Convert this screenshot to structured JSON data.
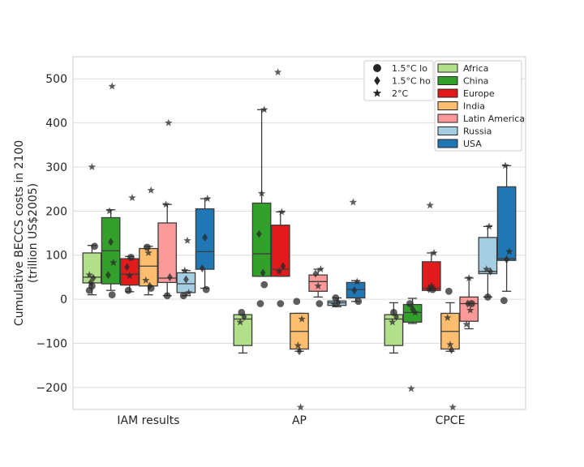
{
  "chart_data": {
    "type": "box",
    "ylabel": "Cumulative BECCS costs in 2100\n(trillion US$2005)",
    "ylim": [
      -250,
      550
    ],
    "yticks": [
      -200,
      -100,
      0,
      100,
      200,
      300,
      400,
      500
    ],
    "categories": [
      "IAM results",
      "AP",
      "CPCE"
    ],
    "grid": true,
    "marker_legend": [
      {
        "label": "1.5°C lo",
        "marker": "circle"
      },
      {
        "label": "1.5°C ho",
        "marker": "diamond"
      },
      {
        "label": "2°C",
        "marker": "star"
      }
    ],
    "series": [
      {
        "name": "Africa",
        "color": "#b2df8a"
      },
      {
        "name": "China",
        "color": "#33a02c"
      },
      {
        "name": "Europe",
        "color": "#e31a1c"
      },
      {
        "name": "India",
        "color": "#fdbf6f"
      },
      {
        "name": "Latin America",
        "color": "#fb9a99"
      },
      {
        "name": "Russia",
        "color": "#a6cee3"
      },
      {
        "name": "USA",
        "color": "#1f78b4"
      }
    ],
    "boxes": [
      {
        "category": "IAM results",
        "series": "Africa",
        "q1": 37,
        "median": 50,
        "q3": 105,
        "whisker_low": 10,
        "whisker_high": 122,
        "points": [
          {
            "m": "o",
            "y": 20
          },
          {
            "m": "o",
            "y": 30
          },
          {
            "m": "o",
            "y": 120
          },
          {
            "m": "d",
            "y": 38
          },
          {
            "m": "d",
            "y": 48
          },
          {
            "m": "*",
            "y": 55
          },
          {
            "m": "*",
            "y": 300
          }
        ]
      },
      {
        "category": "IAM results",
        "series": "China",
        "q1": 35,
        "median": 110,
        "q3": 185,
        "whisker_low": 20,
        "whisker_high": 203,
        "points": [
          {
            "m": "o",
            "y": 10
          },
          {
            "m": "d",
            "y": 55
          },
          {
            "m": "d",
            "y": 130
          },
          {
            "m": "*",
            "y": 83
          },
          {
            "m": "*",
            "y": 200
          },
          {
            "m": "*",
            "y": 483
          }
        ]
      },
      {
        "category": "IAM results",
        "series": "Europe",
        "q1": 32,
        "median": 57,
        "q3": 92,
        "whisker_low": 17,
        "whisker_high": 97,
        "points": [
          {
            "m": "o",
            "y": 20
          },
          {
            "m": "o",
            "y": 95
          },
          {
            "m": "d",
            "y": 73
          },
          {
            "m": "*",
            "y": 53
          },
          {
            "m": "*",
            "y": 230
          }
        ]
      },
      {
        "category": "IAM results",
        "series": "India",
        "q1": 30,
        "median": 75,
        "q3": 115,
        "whisker_low": 10,
        "whisker_high": 120,
        "points": [
          {
            "m": "o",
            "y": 25
          },
          {
            "m": "o",
            "y": 118
          },
          {
            "m": "d",
            "y": 30
          },
          {
            "m": "*",
            "y": 43
          },
          {
            "m": "*",
            "y": 105
          },
          {
            "m": "*",
            "y": 247
          }
        ]
      },
      {
        "category": "IAM results",
        "series": "Latin America",
        "q1": 38,
        "median": 48,
        "q3": 173,
        "whisker_low": 8,
        "whisker_high": 215,
        "points": [
          {
            "m": "o",
            "y": 8
          },
          {
            "m": "d",
            "y": 50
          },
          {
            "m": "*",
            "y": 215
          },
          {
            "m": "*",
            "y": 400
          }
        ]
      },
      {
        "category": "IAM results",
        "series": "Russia",
        "q1": 15,
        "median": 35,
        "q3": 60,
        "whisker_low": 8,
        "whisker_high": 65,
        "points": [
          {
            "m": "o",
            "y": 8
          },
          {
            "m": "d",
            "y": 45
          },
          {
            "m": "*",
            "y": 15
          },
          {
            "m": "*",
            "y": 65
          },
          {
            "m": "*",
            "y": 133
          }
        ]
      },
      {
        "category": "IAM results",
        "series": "USA",
        "q1": 68,
        "median": 108,
        "q3": 205,
        "whisker_low": 25,
        "whisker_high": 228,
        "points": [
          {
            "m": "o",
            "y": 22
          },
          {
            "m": "d",
            "y": 70
          },
          {
            "m": "d",
            "y": 140
          },
          {
            "m": "*",
            "y": 228
          }
        ]
      },
      {
        "category": "AP",
        "series": "Africa",
        "q1": -105,
        "median": -45,
        "q3": -35,
        "whisker_low": -122,
        "whisker_high": -35,
        "points": [
          {
            "m": "o",
            "y": -30
          },
          {
            "m": "d",
            "y": -40
          },
          {
            "m": "*",
            "y": -52
          }
        ]
      },
      {
        "category": "AP",
        "series": "China",
        "q1": 52,
        "median": 103,
        "q3": 218,
        "whisker_low": 52,
        "whisker_high": 430,
        "points": [
          {
            "m": "o",
            "y": 33
          },
          {
            "m": "o",
            "y": -10
          },
          {
            "m": "d",
            "y": 60
          },
          {
            "m": "d",
            "y": 148
          },
          {
            "m": "*",
            "y": 240
          },
          {
            "m": "*",
            "y": 430
          }
        ]
      },
      {
        "category": "AP",
        "series": "Europe",
        "q1": 52,
        "median": 68,
        "q3": 168,
        "whisker_low": 52,
        "whisker_high": 198,
        "points": [
          {
            "m": "o",
            "y": -10
          },
          {
            "m": "d",
            "y": 75
          },
          {
            "m": "*",
            "y": 63
          },
          {
            "m": "*",
            "y": 198
          },
          {
            "m": "*",
            "y": 515
          }
        ]
      },
      {
        "category": "AP",
        "series": "India",
        "q1": -113,
        "median": -73,
        "q3": -32,
        "whisker_low": -118,
        "whisker_high": -32,
        "points": [
          {
            "m": "o",
            "y": -5
          },
          {
            "m": "d",
            "y": -118
          },
          {
            "m": "*",
            "y": -45
          },
          {
            "m": "*",
            "y": -105
          },
          {
            "m": "*",
            "y": -245
          }
        ]
      },
      {
        "category": "AP",
        "series": "Latin America",
        "q1": 18,
        "median": 40,
        "q3": 55,
        "whisker_low": 5,
        "whisker_high": 68,
        "points": [
          {
            "m": "o",
            "y": -10
          },
          {
            "m": "d",
            "y": 58
          },
          {
            "m": "*",
            "y": 30
          },
          {
            "m": "*",
            "y": 68
          }
        ]
      },
      {
        "category": "AP",
        "series": "Russia",
        "q1": -14,
        "median": -8,
        "q3": -4,
        "whisker_low": -17,
        "whisker_high": 3,
        "points": [
          {
            "m": "o",
            "y": 3
          },
          {
            "m": "d",
            "y": -8
          },
          {
            "m": "*",
            "y": -12
          }
        ]
      },
      {
        "category": "AP",
        "series": "USA",
        "q1": 3,
        "median": 22,
        "q3": 38,
        "whisker_low": -5,
        "whisker_high": 42,
        "points": [
          {
            "m": "o",
            "y": -5
          },
          {
            "m": "d",
            "y": 20
          },
          {
            "m": "*",
            "y": 40
          },
          {
            "m": "*",
            "y": 220
          }
        ]
      },
      {
        "category": "CPCE",
        "series": "Africa",
        "q1": -105,
        "median": -45,
        "q3": -35,
        "whisker_low": -122,
        "whisker_high": -8,
        "points": [
          {
            "m": "o",
            "y": -30
          },
          {
            "m": "d",
            "y": -40
          },
          {
            "m": "*",
            "y": -52
          }
        ]
      },
      {
        "category": "CPCE",
        "series": "China",
        "q1": -52,
        "median": -30,
        "q3": -12,
        "whisker_low": -55,
        "whisker_high": 2,
        "points": [
          {
            "m": "o",
            "y": -10
          },
          {
            "m": "d",
            "y": -22
          },
          {
            "m": "*",
            "y": -30
          },
          {
            "m": "*",
            "y": -203
          }
        ]
      },
      {
        "category": "CPCE",
        "series": "Europe",
        "q1": 20,
        "median": 25,
        "q3": 85,
        "whisker_low": 20,
        "whisker_high": 105,
        "points": [
          {
            "m": "o",
            "y": 22
          },
          {
            "m": "d",
            "y": 23
          },
          {
            "m": "*",
            "y": 30
          },
          {
            "m": "*",
            "y": 105
          },
          {
            "m": "*",
            "y": 213
          }
        ]
      },
      {
        "category": "CPCE",
        "series": "India",
        "q1": -113,
        "median": -73,
        "q3": -32,
        "whisker_low": -118,
        "whisker_high": -8,
        "points": [
          {
            "m": "o",
            "y": 18
          },
          {
            "m": "d",
            "y": -115
          },
          {
            "m": "*",
            "y": -42
          },
          {
            "m": "*",
            "y": -103
          },
          {
            "m": "*",
            "y": -245
          }
        ]
      },
      {
        "category": "CPCE",
        "series": "Latin America",
        "q1": -50,
        "median": -10,
        "q3": 5,
        "whisker_low": -67,
        "whisker_high": 48,
        "points": [
          {
            "m": "o",
            "y": -10
          },
          {
            "m": "d",
            "y": -10
          },
          {
            "m": "*",
            "y": -25
          },
          {
            "m": "*",
            "y": -57
          },
          {
            "m": "*",
            "y": 48
          }
        ]
      },
      {
        "category": "CPCE",
        "series": "Russia",
        "q1": 58,
        "median": 63,
        "q3": 140,
        "whisker_low": 5,
        "whisker_high": 165,
        "points": [
          {
            "m": "o",
            "y": 5
          },
          {
            "m": "d",
            "y": 63
          },
          {
            "m": "*",
            "y": 68
          },
          {
            "m": "*",
            "y": 165
          }
        ]
      },
      {
        "category": "CPCE",
        "series": "USA",
        "q1": 88,
        "median": 92,
        "q3": 255,
        "whisker_low": 18,
        "whisker_high": 303,
        "points": [
          {
            "m": "o",
            "y": -3
          },
          {
            "m": "d",
            "y": 90
          },
          {
            "m": "*",
            "y": 108
          },
          {
            "m": "*",
            "y": 303
          }
        ]
      }
    ]
  }
}
